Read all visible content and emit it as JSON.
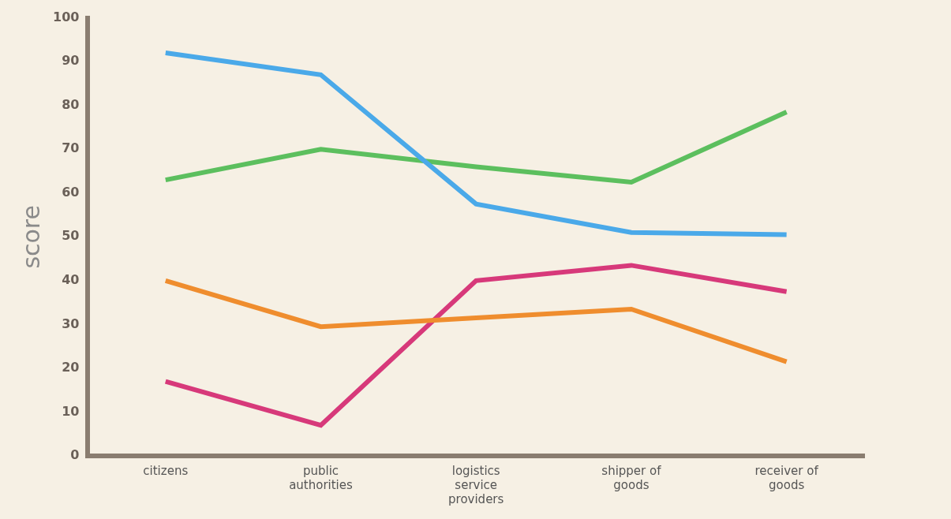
{
  "chart_data": {
    "type": "line",
    "y_label": "score",
    "categories": [
      "citizens",
      "public authorities",
      "logistics service providers",
      "shipper of goods",
      "receiver of goods"
    ],
    "series": [
      {
        "color": "#4aa9e9",
        "values": [
          92,
          87,
          57.5,
          51,
          50.5
        ]
      },
      {
        "color": "#5cbf5e",
        "values": [
          63,
          70,
          66,
          62.5,
          78.5
        ]
      },
      {
        "color": "#ef8d2e",
        "values": [
          40,
          29.5,
          31.5,
          33.5,
          21.5
        ]
      },
      {
        "color": "#d7397a",
        "values": [
          17,
          7,
          40,
          43.5,
          37.5
        ]
      }
    ],
    "ylim": [
      0,
      100
    ],
    "yticks": [
      0,
      10,
      20,
      30,
      40,
      50,
      60,
      70,
      80,
      90,
      100
    ],
    "grid": false
  }
}
